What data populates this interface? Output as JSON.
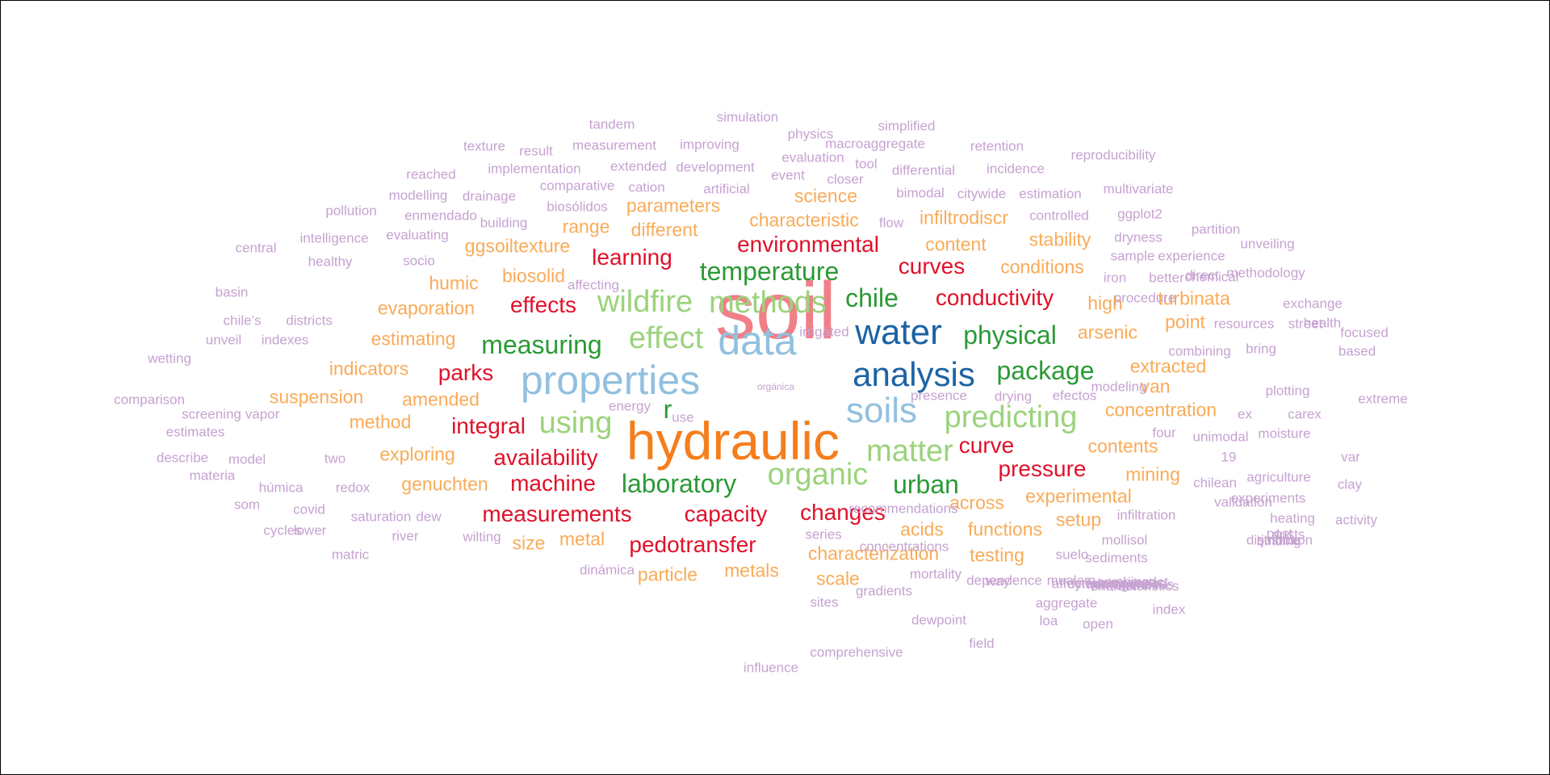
{
  "colors": {
    "red": "#e0112a",
    "green": "#2a9a36",
    "light_green": "#9bd37c",
    "blue": "#1b63a4",
    "light_blue": "#92c0df",
    "orange": "#f57e1c",
    "light_orange": "#f9ab58",
    "pink": "#f07f88",
    "purple": "#c6a2d1",
    "background": "#ffffff",
    "border": "#000000"
  },
  "words": [
    "soil",
    "hydraulic",
    "properties",
    "data",
    "water",
    "analysis",
    "soils",
    "wildfire",
    "methods",
    "effect",
    "using",
    "organic",
    "matter",
    "predicting",
    "measuring",
    "temperature",
    "laboratory",
    "physical",
    "package",
    "chile",
    "urban",
    "r",
    "environmental",
    "learning",
    "curves",
    "conductivity",
    "effects",
    "parks",
    "integral",
    "availability",
    "machine",
    "measurements",
    "capacity",
    "changes",
    "pedotransfer",
    "curve",
    "pressure",
    "parameters",
    "science",
    "characteristic",
    "infiltrodiscr",
    "range",
    "different",
    "ggsoiltexture",
    "content",
    "stability",
    "conditions",
    "biosolid",
    "humic",
    "high",
    "turbinata",
    "evaporation",
    "arsenic",
    "point",
    "estimating",
    "extracted",
    "indicators",
    "van",
    "suspension",
    "amended",
    "concentration",
    "method",
    "exploring",
    "contents",
    "genuchten",
    "mining",
    "experimental",
    "across",
    "setup",
    "acids",
    "functions",
    "size",
    "metal",
    "characterization",
    "testing",
    "particle",
    "metals",
    "scale",
    "simulation",
    "tandem",
    "physics",
    "simplified",
    "texture",
    "measurement",
    "improving",
    "retention",
    "result",
    "evaluation",
    "macroaggregate",
    "reproducibility",
    "implementation",
    "extended",
    "development",
    "tool",
    "differential",
    "incidence",
    "reached",
    "event",
    "closer",
    "comparative",
    "cation",
    "artificial",
    "bimodal",
    "citywide",
    "estimation",
    "multivariate",
    "modelling",
    "drainage",
    "pollution",
    "enmendado",
    "building",
    "biosólidos",
    "flow",
    "controlled",
    "ggplot2",
    "partition",
    "intelligence",
    "evaluating",
    "dryness",
    "unveiling",
    "central",
    "healthy",
    "socio",
    "sample",
    "experience",
    "chemical",
    "iron",
    "better",
    "direct",
    "methodology",
    "affecting",
    "basin",
    "procedure",
    "exchange",
    "health",
    "resources",
    "street",
    "focused",
    "chile’s",
    "districts",
    "irrigated",
    "unveil",
    "indexes",
    "combining",
    "bring",
    "based",
    "wetting",
    "presence",
    "drying",
    "efectos",
    "modeling",
    "plotting",
    "extreme",
    "comparison",
    "screening",
    "vapor",
    "energy",
    "use",
    "ex",
    "carex",
    "estimates",
    "unimodal",
    "moisture",
    "four",
    "19",
    "var",
    "describe",
    "model",
    "two",
    "materia",
    "chilean",
    "agriculture",
    "húmica",
    "redox",
    "validation",
    "experiments",
    "clay",
    "som",
    "covid",
    "recommendations",
    "saturation",
    "dew",
    "infiltration",
    "heating",
    "cycles",
    "lower",
    "river",
    "wilting",
    "series",
    "mollisol",
    "post",
    "dusts",
    "activity",
    "concentrations",
    "sediments",
    "suelo",
    "justice",
    "distribution",
    "binding",
    "matric",
    "dinámica",
    "mortality",
    "way",
    "mualem",
    "combined",
    "gradients",
    "dependence",
    "affected",
    "impact",
    "processes",
    "sites",
    "aggregate",
    "dynamics",
    "index",
    "propiedades",
    "homogeneous",
    "dewpoint",
    "loa",
    "open",
    "entire",
    "characteristics",
    "comprehensive",
    "field",
    "influence",
    "orgánica",
    "study",
    "visualization",
    "infiltrometer",
    "hysteresis",
    "fracción",
    "geochemistry",
    "management",
    "systems",
    "textural",
    "potentiometer",
    "sulfur",
    "potentials",
    "processing",
    "sustainable",
    "techniques",
    "s"
  ]
}
